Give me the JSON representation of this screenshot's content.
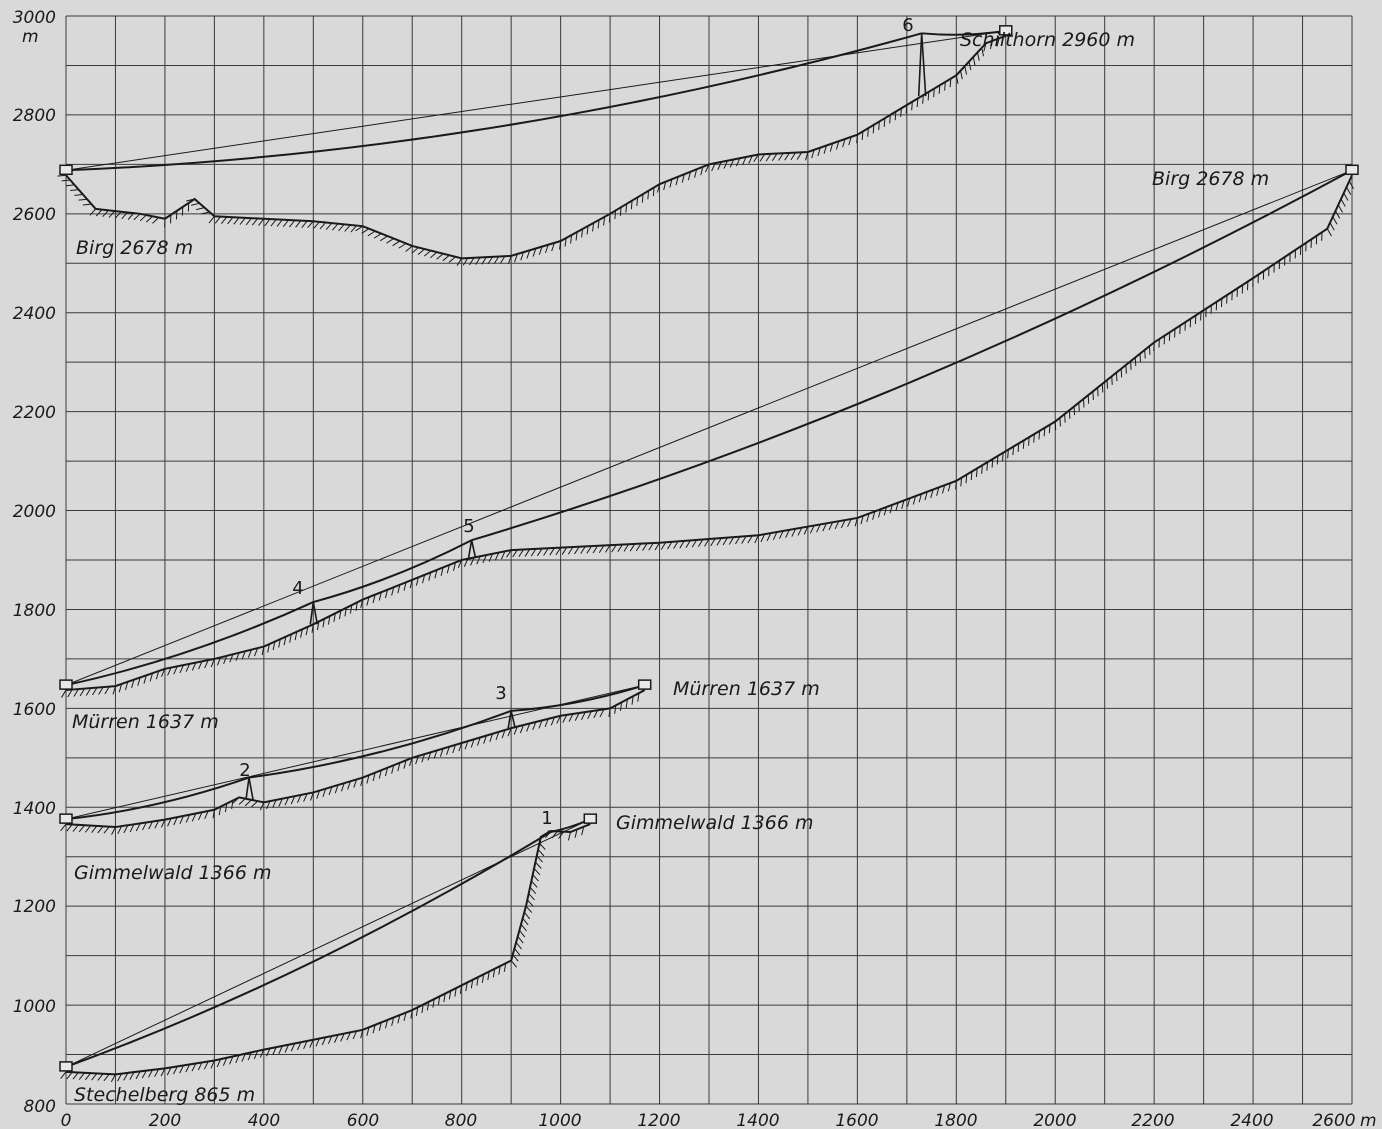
{
  "chart_data": {
    "type": "line",
    "x_unit": "m",
    "y_unit": "m",
    "xlim": [
      0,
      2600
    ],
    "ylim": [
      800,
      3000
    ],
    "x_ticks": [
      0,
      200,
      400,
      600,
      800,
      1000,
      1200,
      1400,
      1600,
      1800,
      2000,
      2200,
      2400,
      2600
    ],
    "y_ticks": [
      800,
      1000,
      1200,
      1400,
      1600,
      1800,
      2000,
      2200,
      2400,
      2600,
      2800,
      3000
    ],
    "grid": true,
    "sections": [
      {
        "from": "Stechelberg 865 m",
        "to": "Gimmelwald 1366 m",
        "towers": [
          {
            "label": "1",
            "x": 980,
            "y": 1350
          }
        ],
        "terrain": [
          [
            0,
            865
          ],
          [
            100,
            860
          ],
          [
            200,
            872
          ],
          [
            300,
            888
          ],
          [
            400,
            910
          ],
          [
            500,
            930
          ],
          [
            600,
            950
          ],
          [
            700,
            990
          ],
          [
            800,
            1040
          ],
          [
            900,
            1090
          ],
          [
            930,
            1200
          ],
          [
            960,
            1340
          ],
          [
            980,
            1352
          ],
          [
            1020,
            1350
          ],
          [
            1060,
            1366
          ]
        ]
      },
      {
        "from": "Gimmelwald 1366 m",
        "to": "Mürren 1637 m",
        "towers": [
          {
            "label": "2",
            "x": 370,
            "y": 1460
          },
          {
            "label": "3",
            "x": 900,
            "y": 1595
          }
        ],
        "terrain": [
          [
            0,
            1366
          ],
          [
            100,
            1360
          ],
          [
            200,
            1375
          ],
          [
            300,
            1395
          ],
          [
            350,
            1420
          ],
          [
            400,
            1410
          ],
          [
            500,
            1430
          ],
          [
            600,
            1460
          ],
          [
            700,
            1500
          ],
          [
            800,
            1530
          ],
          [
            900,
            1560
          ],
          [
            1000,
            1585
          ],
          [
            1100,
            1600
          ],
          [
            1170,
            1637
          ]
        ]
      },
      {
        "from": "Mürren 1637 m",
        "to": "Birg 2678 m",
        "towers": [
          {
            "label": "4",
            "x": 500,
            "y": 1815
          },
          {
            "label": "5",
            "x": 820,
            "y": 1940
          }
        ],
        "terrain": [
          [
            0,
            1637
          ],
          [
            100,
            1645
          ],
          [
            200,
            1680
          ],
          [
            300,
            1700
          ],
          [
            400,
            1725
          ],
          [
            500,
            1770
          ],
          [
            600,
            1820
          ],
          [
            700,
            1860
          ],
          [
            800,
            1900
          ],
          [
            900,
            1920
          ],
          [
            1000,
            1925
          ],
          [
            1200,
            1935
          ],
          [
            1400,
            1950
          ],
          [
            1600,
            1985
          ],
          [
            1800,
            2060
          ],
          [
            2000,
            2180
          ],
          [
            2200,
            2340
          ],
          [
            2400,
            2470
          ],
          [
            2550,
            2570
          ],
          [
            2600,
            2678
          ]
        ]
      },
      {
        "from": "Birg 2678 m",
        "to": "Schilthorn 2960 m",
        "towers": [
          {
            "label": "6",
            "x": 1730,
            "y": 2965
          }
        ],
        "terrain": [
          [
            0,
            2678
          ],
          [
            60,
            2610
          ],
          [
            150,
            2600
          ],
          [
            200,
            2590
          ],
          [
            260,
            2630
          ],
          [
            300,
            2595
          ],
          [
            400,
            2590
          ],
          [
            500,
            2585
          ],
          [
            600,
            2575
          ],
          [
            700,
            2535
          ],
          [
            800,
            2510
          ],
          [
            900,
            2515
          ],
          [
            1000,
            2545
          ],
          [
            1100,
            2600
          ],
          [
            1200,
            2660
          ],
          [
            1300,
            2700
          ],
          [
            1400,
            2720
          ],
          [
            1500,
            2725
          ],
          [
            1600,
            2760
          ],
          [
            1700,
            2820
          ],
          [
            1800,
            2880
          ],
          [
            1860,
            2945
          ],
          [
            1900,
            2960
          ]
        ]
      }
    ]
  },
  "axes": {
    "x_tick_labels": [
      "0",
      "200",
      "400",
      "600",
      "800",
      "1000",
      "1200",
      "1400",
      "1600",
      "1800",
      "2000",
      "2200",
      "2400",
      "2600"
    ],
    "y_tick_labels": [
      "800",
      "1000",
      "1200",
      "1400",
      "1600",
      "1800",
      "2000",
      "2200",
      "2400",
      "2600",
      "2800",
      "3000"
    ],
    "x_unit_label": "m",
    "y_unit_label": "m"
  },
  "station_labels": {
    "stechelberg": "Stechelberg 865 m",
    "gimmelwald_left": "Gimmelwald 1366 m",
    "gimmelwald_right": "Gimmelwald 1366 m",
    "muerren_left": "Mürren 1637 m",
    "muerren_right": "Mürren 1637 m",
    "birg_left": "Birg 2678 m",
    "birg_right": "Birg 2678 m",
    "schilthorn": "Schilthorn 2960 m"
  },
  "tower_labels": [
    "1",
    "2",
    "3",
    "4",
    "5",
    "6"
  ]
}
